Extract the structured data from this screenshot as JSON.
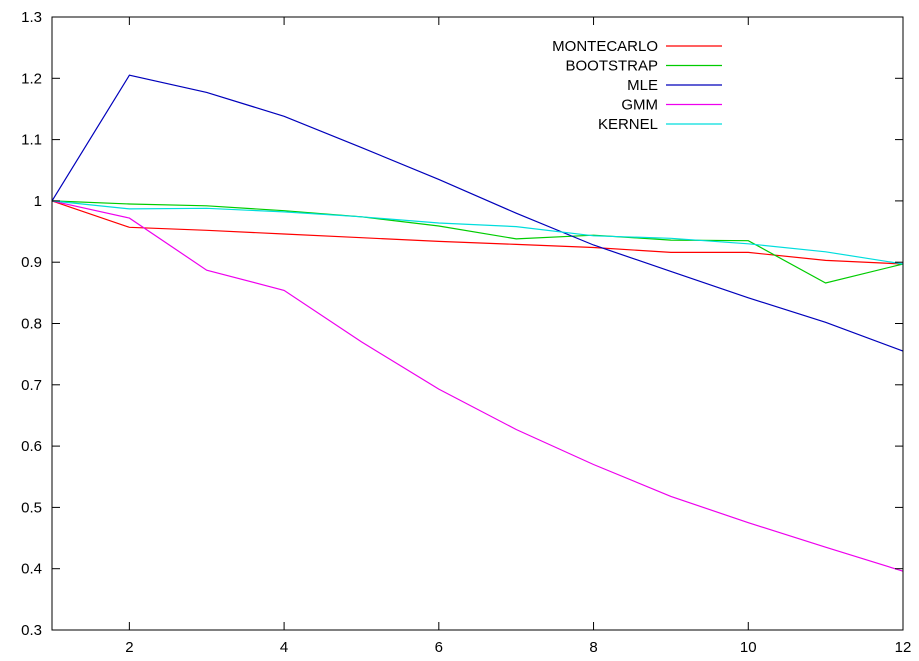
{
  "chart_data": {
    "type": "line",
    "title": "",
    "xlabel": "",
    "ylabel": "",
    "xlim": [
      1,
      12
    ],
    "ylim": [
      0.3,
      1.3
    ],
    "x_ticks": [
      2,
      4,
      6,
      8,
      10,
      12
    ],
    "y_ticks": [
      0.3,
      0.4,
      0.5,
      0.6,
      0.7,
      0.8,
      0.9,
      1,
      1.1,
      1.2,
      1.3
    ],
    "grid": false,
    "legend_position": "top-right",
    "x": [
      1,
      2,
      3,
      4,
      5,
      6,
      7,
      8,
      9,
      10,
      11,
      12
    ],
    "series": [
      {
        "name": "MONTECARLO",
        "color": "#ff0000",
        "values": [
          1.0,
          0.957,
          0.952,
          0.946,
          0.94,
          0.934,
          0.929,
          0.924,
          0.916,
          0.916,
          0.903,
          0.897
        ]
      },
      {
        "name": "BOOTSTRAP",
        "color": "#00cc00",
        "values": [
          1.0,
          0.995,
          0.992,
          0.984,
          0.974,
          0.959,
          0.938,
          0.944,
          0.936,
          0.935,
          0.866,
          0.897
        ]
      },
      {
        "name": "MLE",
        "color": "#0000bb",
        "values": [
          1.0,
          1.205,
          1.177,
          1.138,
          1.087,
          1.035,
          0.98,
          0.928,
          0.885,
          0.842,
          0.802,
          0.755
        ]
      },
      {
        "name": "GMM",
        "color": "#ee00ee",
        "values": [
          1.0,
          0.972,
          0.887,
          0.854,
          0.77,
          0.693,
          0.627,
          0.57,
          0.518,
          0.475,
          0.435,
          0.396
        ]
      },
      {
        "name": "KERNEL",
        "color": "#00dddd",
        "values": [
          1.0,
          0.987,
          0.988,
          0.982,
          0.974,
          0.964,
          0.958,
          0.943,
          0.939,
          0.93,
          0.917,
          0.897
        ]
      }
    ]
  }
}
